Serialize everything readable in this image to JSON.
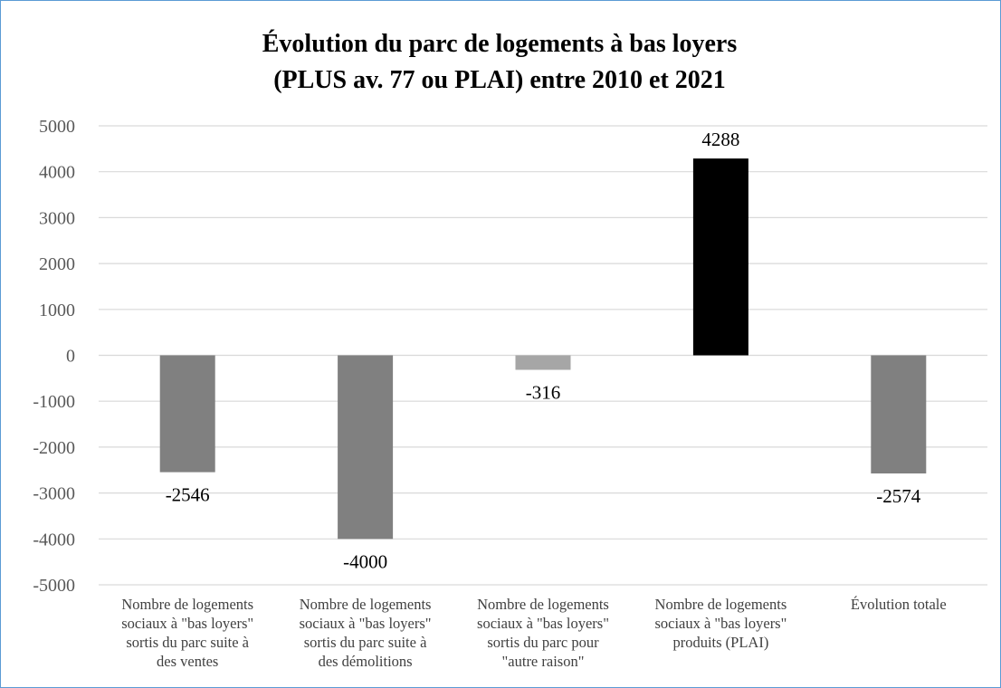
{
  "chart_data": {
    "type": "bar",
    "title": [
      "Évolution du parc de logements à bas loyers",
      "(PLUS av. 77 ou PLAI) entre 2010 et 2021"
    ],
    "xlabel": "",
    "ylabel": "",
    "ylim": [
      -5000,
      5000
    ],
    "yticks": [
      5000,
      4000,
      3000,
      2000,
      1000,
      0,
      -1000,
      -2000,
      -3000,
      -4000,
      -5000
    ],
    "grid": true,
    "legend": "none",
    "categories": [
      [
        "Nombre de logements",
        "sociaux à \"bas loyers\"",
        "sortis du parc suite à",
        "des ventes"
      ],
      [
        "Nombre de logements",
        "sociaux à \"bas loyers\"",
        "sortis du parc suite à",
        "des démolitions"
      ],
      [
        "Nombre de logements",
        "sociaux à \"bas loyers\"",
        "sortis du parc pour",
        "\"autre raison\""
      ],
      [
        "Nombre de logements",
        "sociaux à \"bas loyers\"",
        "produits (PLAI)"
      ],
      [
        "Évolution totale"
      ]
    ],
    "values": [
      -2546,
      -4000,
      -316,
      4288,
      -2574
    ],
    "data_labels": [
      "-2546",
      "-4000",
      "-316",
      "4288",
      "-2574"
    ],
    "colors": [
      "#808080",
      "#808080",
      "#a6a6a6",
      "#000000",
      "#808080"
    ]
  }
}
